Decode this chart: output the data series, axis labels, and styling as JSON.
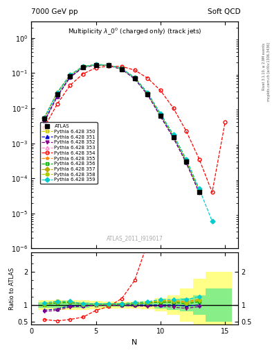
{
  "title_left": "7000 GeV pp",
  "title_right": "Soft QCD",
  "plot_title": "Multiplicity $\\lambda\\_0^0$ (charged only) (track jets)",
  "ylabel_ratio": "Ratio to ATLAS",
  "xlabel": "N",
  "watermark": "ATLAS_2011_I919017",
  "x_data": [
    1,
    2,
    3,
    4,
    5,
    6,
    7,
    8,
    9,
    10,
    11,
    12,
    13,
    14,
    15
  ],
  "atlas_y": [
    0.005,
    0.025,
    0.08,
    0.15,
    0.17,
    0.165,
    0.13,
    0.07,
    0.025,
    0.006,
    0.0015,
    0.0003,
    4e-05,
    null,
    null
  ],
  "series": [
    {
      "label": "Pythia 6.428 350",
      "color": "#c8c800",
      "marker": "s",
      "fillstyle": "none",
      "y": [
        0.005,
        0.028,
        0.088,
        0.153,
        0.173,
        0.168,
        0.133,
        0.073,
        0.0265,
        0.0065,
        0.0016,
        0.00032,
        4.5e-05,
        null,
        null
      ]
    },
    {
      "label": "Pythia 6.428 351",
      "color": "#0000cc",
      "marker": "^",
      "fillstyle": "full",
      "y": [
        0.0042,
        0.022,
        0.078,
        0.146,
        0.17,
        0.165,
        0.13,
        0.07,
        0.025,
        0.006,
        0.0015,
        0.00029,
        4e-05,
        null,
        null
      ]
    },
    {
      "label": "Pythia 6.428 352",
      "color": "#880088",
      "marker": "v",
      "fillstyle": "full",
      "y": [
        0.004,
        0.021,
        0.075,
        0.144,
        0.168,
        0.163,
        0.128,
        0.068,
        0.024,
        0.0058,
        0.0014,
        0.00027,
        3.8e-05,
        null,
        null
      ]
    },
    {
      "label": "Pythia 6.428 353",
      "color": "#ff88cc",
      "marker": "^",
      "fillstyle": "none",
      "y": [
        0.0052,
        0.027,
        0.087,
        0.154,
        0.174,
        0.169,
        0.134,
        0.074,
        0.0268,
        0.0067,
        0.00165,
        0.00032,
        4.6e-05,
        null,
        null
      ]
    },
    {
      "label": "Pythia 6.428 354",
      "color": "#ff0000",
      "marker": "o",
      "fillstyle": "none",
      "y": [
        0.0028,
        0.013,
        0.045,
        0.095,
        0.142,
        0.158,
        0.155,
        0.122,
        0.072,
        0.032,
        0.01,
        0.0022,
        0.00035,
        4e-05,
        0.004
      ]
    },
    {
      "label": "Pythia 6.428 355",
      "color": "#ff8800",
      "marker": "*",
      "fillstyle": "full",
      "y": [
        0.0053,
        0.0275,
        0.089,
        0.155,
        0.175,
        0.17,
        0.135,
        0.075,
        0.0272,
        0.0068,
        0.0017,
        0.00033,
        4.7e-05,
        null,
        null
      ]
    },
    {
      "label": "Pythia 6.428 356",
      "color": "#00aa00",
      "marker": "s",
      "fillstyle": "none",
      "y": [
        0.0051,
        0.0265,
        0.086,
        0.153,
        0.173,
        0.168,
        0.133,
        0.073,
        0.0265,
        0.0065,
        0.00162,
        0.00031,
        4.4e-05,
        null,
        null
      ]
    },
    {
      "label": "Pythia 6.428 357",
      "color": "#bbaa00",
      "marker": "D",
      "fillstyle": "full",
      "y": [
        0.0052,
        0.0272,
        0.088,
        0.154,
        0.174,
        0.169,
        0.134,
        0.074,
        0.027,
        0.0067,
        0.00167,
        0.00032,
        4.6e-05,
        null,
        null
      ]
    },
    {
      "label": "Pythia 6.428 358",
      "color": "#aacc00",
      "marker": "o",
      "fillstyle": "full",
      "y": [
        0.0052,
        0.0272,
        0.088,
        0.154,
        0.174,
        0.169,
        0.134,
        0.074,
        0.027,
        0.0067,
        0.00167,
        0.00032,
        4.6e-05,
        null,
        null
      ]
    },
    {
      "label": "Pythia 6.428 359",
      "color": "#00cccc",
      "marker": "D",
      "fillstyle": "full",
      "y": [
        0.0053,
        0.0278,
        0.089,
        0.155,
        0.175,
        0.17,
        0.135,
        0.075,
        0.0275,
        0.007,
        0.00175,
        0.00035,
        5e-05,
        6e-06,
        null
      ]
    }
  ],
  "band_x": [
    1,
    2,
    3,
    4,
    5,
    6,
    7,
    8,
    9,
    10,
    11,
    12,
    13,
    14,
    15
  ],
  "band_green_lo": [
    0.92,
    0.92,
    0.92,
    0.92,
    0.95,
    0.95,
    0.95,
    0.95,
    0.95,
    0.9,
    0.85,
    0.8,
    0.7,
    0.5,
    0.5
  ],
  "band_green_hi": [
    1.08,
    1.08,
    1.08,
    1.08,
    1.05,
    1.05,
    1.05,
    1.05,
    1.05,
    1.1,
    1.15,
    1.2,
    1.3,
    1.5,
    1.5
  ],
  "band_yellow_lo": [
    0.85,
    0.85,
    0.85,
    0.85,
    0.88,
    0.9,
    0.9,
    0.9,
    0.88,
    0.8,
    0.7,
    0.5,
    0.2,
    0.0,
    0.0
  ],
  "band_yellow_hi": [
    1.15,
    1.15,
    1.15,
    1.15,
    1.12,
    1.1,
    1.1,
    1.1,
    1.12,
    1.2,
    1.3,
    1.5,
    1.8,
    2.0,
    2.0
  ],
  "xlim": [
    0,
    16
  ],
  "ylim_main": [
    1e-06,
    3
  ],
  "ylim_ratio": [
    0.4,
    2.6
  ]
}
